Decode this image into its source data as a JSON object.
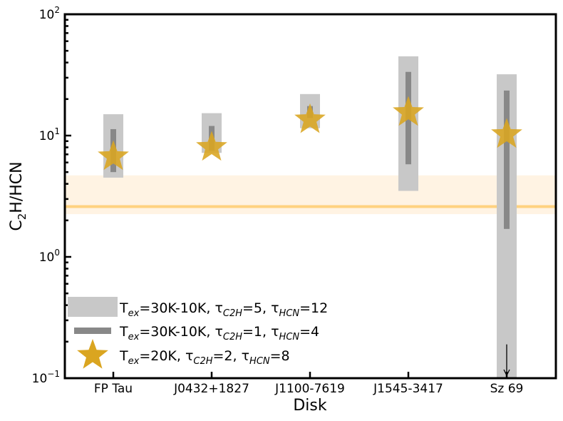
{
  "chart_data": {
    "type": "scatter",
    "xlabel": "Disk",
    "ylabel_main": "C",
    "ylabel_sub": "2",
    "ylabel_rest": "H/HCN",
    "yscale": "log",
    "ylim": [
      0.1,
      100
    ],
    "yticks": [
      {
        "value": 0.1,
        "base": "10",
        "exp": "−1"
      },
      {
        "value": 1,
        "base": "10",
        "exp": "0"
      },
      {
        "value": 10,
        "base": "10",
        "exp": "1"
      },
      {
        "value": 100,
        "base": "10",
        "exp": "2"
      }
    ],
    "categories": [
      "FP Tau",
      "J0432+1827",
      "J1100-7619",
      "J1545-3417",
      "Sz 69"
    ],
    "reference_line": {
      "value": 2.6,
      "band": [
        2.25,
        4.7
      ],
      "color": "#ffd280",
      "band_color": "#fff3e3"
    },
    "series": [
      {
        "key": "wide",
        "legend": [
          "T",
          "ex",
          "=30K-10K, τ",
          "C2H",
          "=5, τ",
          "HCN",
          "=12"
        ],
        "color": "#c8c8c8",
        "ranges": [
          [
            4.5,
            15
          ],
          [
            7.2,
            15.3
          ],
          [
            11.5,
            22
          ],
          [
            3.5,
            45
          ],
          [
            0.1,
            32
          ]
        ]
      },
      {
        "key": "narrow",
        "legend": [
          "T",
          "ex",
          "=30K-10K, τ",
          "C2H",
          "=1, τ",
          "HCN",
          "=4"
        ],
        "color": "#888888",
        "ranges": [
          [
            5,
            11.3
          ],
          [
            7.5,
            12
          ],
          [
            14,
            17.5
          ],
          [
            5.8,
            33.5
          ],
          [
            1.7,
            23.5
          ]
        ]
      },
      {
        "key": "star",
        "legend": [
          "T",
          "ex",
          "=20K, τ",
          "C2H",
          "=2, τ",
          "HCN",
          "=8"
        ],
        "color": "#daa520",
        "values": [
          6.7,
          8.0,
          13.5,
          15.5,
          10.2
        ]
      }
    ],
    "upper_limit_arrow": {
      "category": "Sz 69",
      "from": 0.19,
      "to": 0.1
    },
    "grid": false,
    "legend_position": "lower-left"
  }
}
